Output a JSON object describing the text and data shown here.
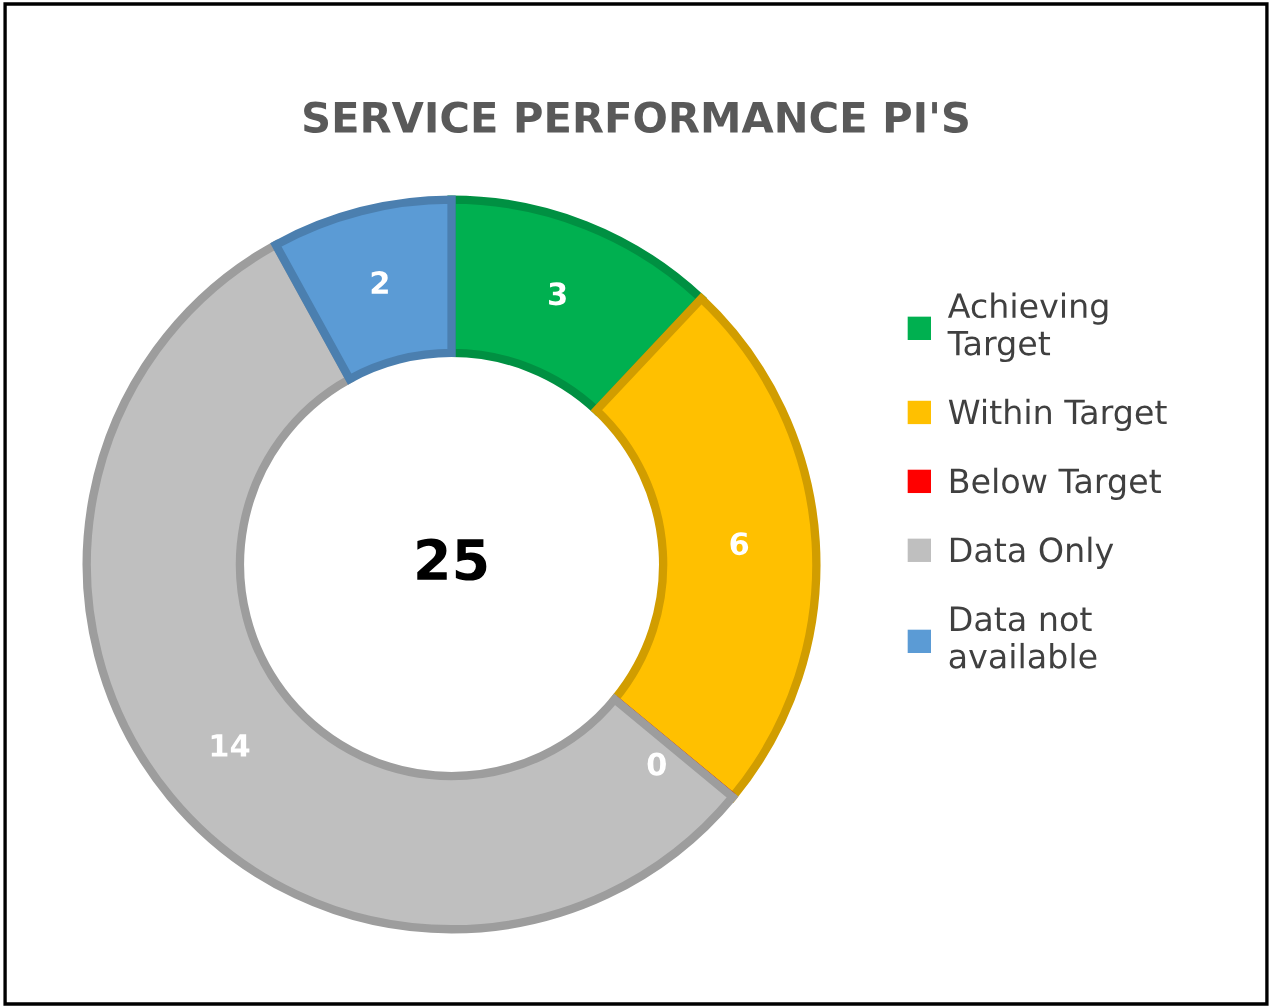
{
  "chart_data": {
    "type": "donut",
    "title": "SERVICE PERFORMANCE PI'S",
    "categories": [
      "Achieving Target",
      "Within Target",
      "Below Target",
      "Data Only",
      "Data not available"
    ],
    "values": [
      3,
      6,
      0,
      14,
      2
    ],
    "colors": [
      "#00b050",
      "#ffc000",
      "#ff0000",
      "#bfbfbf",
      "#5b9bd5"
    ],
    "value_labels": [
      "3",
      "6",
      "0",
      "14",
      "2"
    ],
    "legend": "right",
    "annotations": [
      "25"
    ]
  }
}
